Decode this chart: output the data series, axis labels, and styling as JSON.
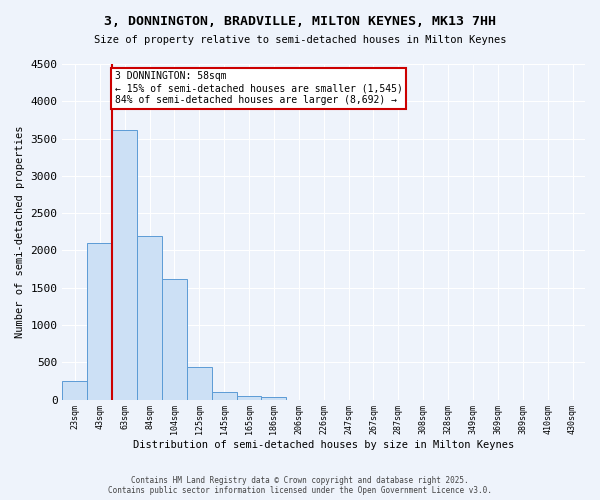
{
  "title": "3, DONNINGTON, BRADVILLE, MILTON KEYNES, MK13 7HH",
  "subtitle": "Size of property relative to semi-detached houses in Milton Keynes",
  "xlabel": "Distribution of semi-detached houses by size in Milton Keynes",
  "ylabel": "Number of semi-detached properties",
  "footnote": "Contains HM Land Registry data © Crown copyright and database right 2025.\nContains public sector information licensed under the Open Government Licence v3.0.",
  "bin_labels": [
    "23sqm",
    "43sqm",
    "63sqm",
    "84sqm",
    "104sqm",
    "125sqm",
    "145sqm",
    "165sqm",
    "186sqm",
    "206sqm",
    "226sqm",
    "247sqm",
    "267sqm",
    "287sqm",
    "308sqm",
    "328sqm",
    "349sqm",
    "369sqm",
    "389sqm",
    "410sqm",
    "430sqm"
  ],
  "bar_values": [
    250,
    2100,
    3620,
    2200,
    1620,
    440,
    100,
    50,
    40,
    0,
    0,
    0,
    0,
    0,
    0,
    0,
    0,
    0,
    0,
    0,
    0
  ],
  "bar_color": "#cce0f5",
  "bar_edge_color": "#5b9bd5",
  "red_line_x": 1.5,
  "property_label": "3 DONNINGTON: 58sqm",
  "pct_smaller": "15% of semi-detached houses are smaller (1,545)",
  "pct_larger": "84% of semi-detached houses are larger (8,692)",
  "annotation_box_color": "#ffffff",
  "annotation_box_edge": "#cc0000",
  "red_line_color": "#cc0000",
  "background_color": "#eef3fb",
  "ylim": [
    0,
    4500
  ],
  "yticks": [
    0,
    500,
    1000,
    1500,
    2000,
    2500,
    3000,
    3500,
    4000,
    4500
  ]
}
